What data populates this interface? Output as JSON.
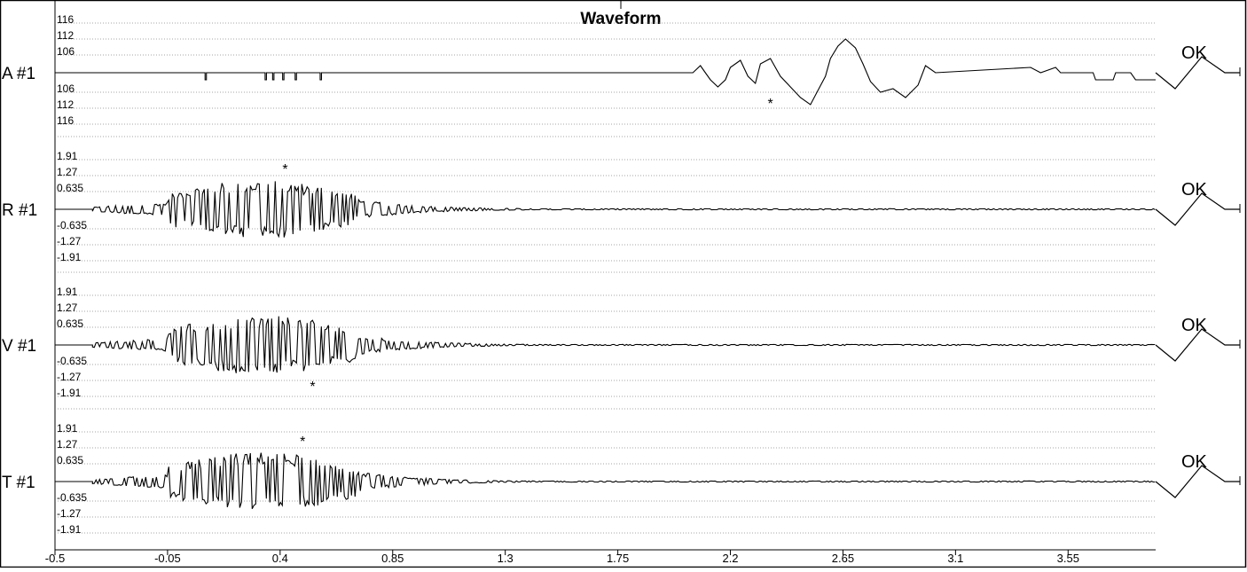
{
  "chart_data": {
    "type": "line",
    "title": "Waveform",
    "xlabel": "",
    "x_ticks": [
      "-0.5",
      "-0.05",
      "0.4",
      "0.85",
      "1.3",
      "1.75",
      "2.2",
      "2.65",
      "3.1",
      "3.55"
    ],
    "xlim": [
      -0.5,
      3.9
    ],
    "grid": true,
    "channels": [
      {
        "label": "A #1",
        "status": "OK",
        "scale_max": 116,
        "y_ticks": [
          "116",
          "112",
          "106",
          "106",
          "112",
          "116"
        ],
        "peak_marker": "*",
        "peak_x": 2.36,
        "peak_value": -110,
        "kind": "step"
      },
      {
        "label": "R #1",
        "status": "OK",
        "scale_max": 1.91,
        "y_ticks": [
          "1.91",
          "1.27",
          "0.635",
          "-0.635",
          "-1.27",
          "-1.91"
        ],
        "peak_marker": "*",
        "peak_x": 0.42,
        "peak_value": 1.0,
        "kind": "burst"
      },
      {
        "label": "V #1",
        "status": "OK",
        "scale_max": 1.91,
        "y_ticks": [
          "1.91",
          "1.27",
          "0.635",
          "-0.635",
          "-1.27",
          "-1.91"
        ],
        "peak_marker": "*",
        "peak_x": 0.53,
        "peak_value": -1.1,
        "kind": "burst"
      },
      {
        "label": "T #1",
        "status": "OK",
        "scale_max": 1.91,
        "y_ticks": [
          "1.91",
          "1.27",
          "0.635",
          "-0.635",
          "-1.27",
          "-1.91"
        ],
        "peak_marker": "*",
        "peak_x": 0.49,
        "peak_value": 0.9,
        "kind": "burst"
      }
    ]
  }
}
